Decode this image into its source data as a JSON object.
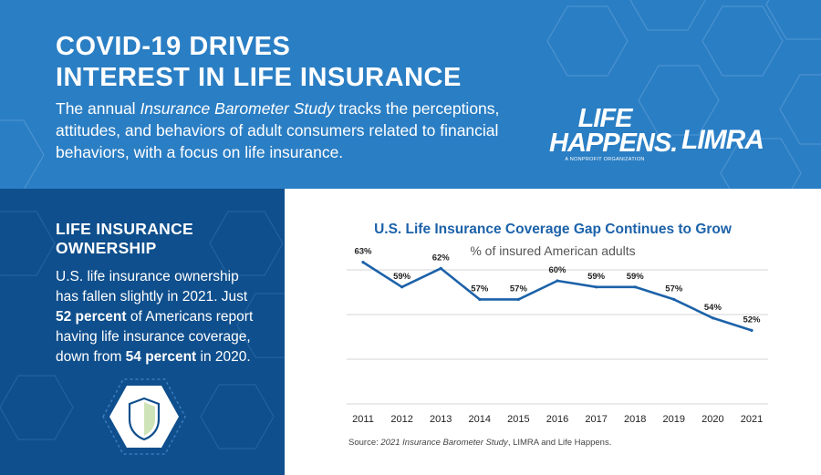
{
  "header": {
    "title_line1": "COVID-19 DRIVES",
    "title_line2": "INTEREST IN LIFE INSURANCE",
    "intro_before": "The annual ",
    "intro_italic": "Insurance Barometer Study",
    "intro_after": " tracks the perceptions, attitudes, and behaviors of adult consumers related to financial behaviors, with a focus on life insurance.",
    "logo_left_line1": "LIFE",
    "logo_left_line2": "HAPPENS.",
    "logo_left_sub": "A NONPROFIT ORGANIZATION",
    "logo_right": "LIMRA"
  },
  "left_panel": {
    "heading_line1": "LIFE INSURANCE",
    "heading_line2": "OWNERSHIP",
    "body_1": "U.S. life insurance ownership has fallen slightly in 2021. Just ",
    "body_bold_1": "52 percent",
    "body_2": " of Americans report having life insurance coverage, down from ",
    "body_bold_2": "54 percent",
    "body_3": " in 2020."
  },
  "source": {
    "prefix": "Source: ",
    "italic": "2021 Insurance Barometer Study",
    "suffix": ", LIMRA and Life Happens."
  },
  "colors": {
    "header_blue": "#2a7ec4",
    "panel_navy": "#0f4f8d",
    "line_blue": "#1c62a9"
  },
  "chart_data": {
    "type": "line",
    "title": "U.S. Life Insurance Coverage Gap Continues to Grow",
    "subtitle": "% of insured American adults",
    "x": [
      "2011",
      "2012",
      "2013",
      "2014",
      "2015",
      "2016",
      "2017",
      "2018",
      "2019",
      "2020",
      "2021"
    ],
    "values": [
      63,
      59,
      62,
      57,
      57,
      60,
      59,
      59,
      57,
      54,
      52
    ],
    "data_labels": [
      "63%",
      "59%",
      "62%",
      "57%",
      "57%",
      "60%",
      "59%",
      "59%",
      "57%",
      "54%",
      "52%"
    ],
    "grid": "horizontal",
    "legend": "none"
  }
}
